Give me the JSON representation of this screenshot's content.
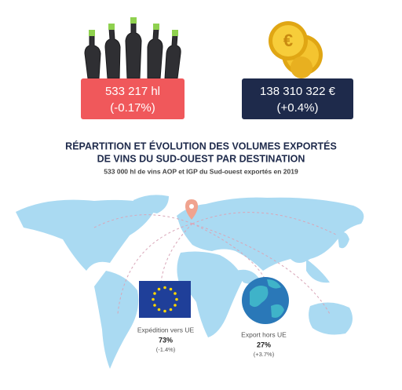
{
  "stats": [
    {
      "value": "533 217 hl",
      "change": "(-0.17%)"
    },
    {
      "value": "138 310 322 €",
      "change": "(+0.4%)"
    }
  ],
  "title": [
    "RÉPARTITION ET ÉVOLUTION DES VOLUMES EXPORTÉS",
    "DE VINS DU SUD-OUEST PAR DESTINATION"
  ],
  "subtitle": "533 000 hl de vins AOP et IGP du Sud-ouest exportés en 2019",
  "destinations": [
    {
      "label": "Expédition vers UE",
      "share": "73%",
      "change": "(-1.4%)"
    },
    {
      "label": "Export hors UE",
      "share": "27%",
      "change": "(+3.7%)"
    }
  ]
}
